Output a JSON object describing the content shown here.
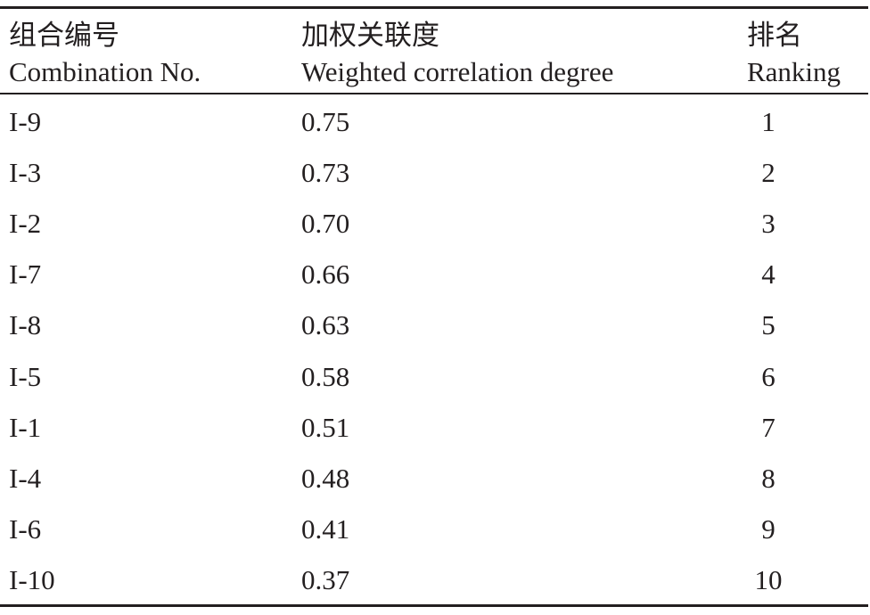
{
  "table": {
    "header": [
      {
        "zh": "组合编号",
        "en": "Combination No."
      },
      {
        "zh": "加权关联度",
        "en": "Weighted correlation degree"
      },
      {
        "zh": "排名",
        "en": "Ranking"
      }
    ],
    "rows": [
      [
        "I-9",
        "0.75",
        "1"
      ],
      [
        "I-3",
        "0.73",
        "2"
      ],
      [
        "I-2",
        "0.70",
        "3"
      ],
      [
        "I-7",
        "0.66",
        "4"
      ],
      [
        "I-8",
        "0.63",
        "5"
      ],
      [
        "I-5",
        "0.58",
        "6"
      ],
      [
        "I-1",
        "0.51",
        "7"
      ],
      [
        "I-4",
        "0.48",
        "8"
      ],
      [
        "I-6",
        "0.41",
        "9"
      ],
      [
        "I-10",
        "0.37",
        "10"
      ]
    ]
  }
}
